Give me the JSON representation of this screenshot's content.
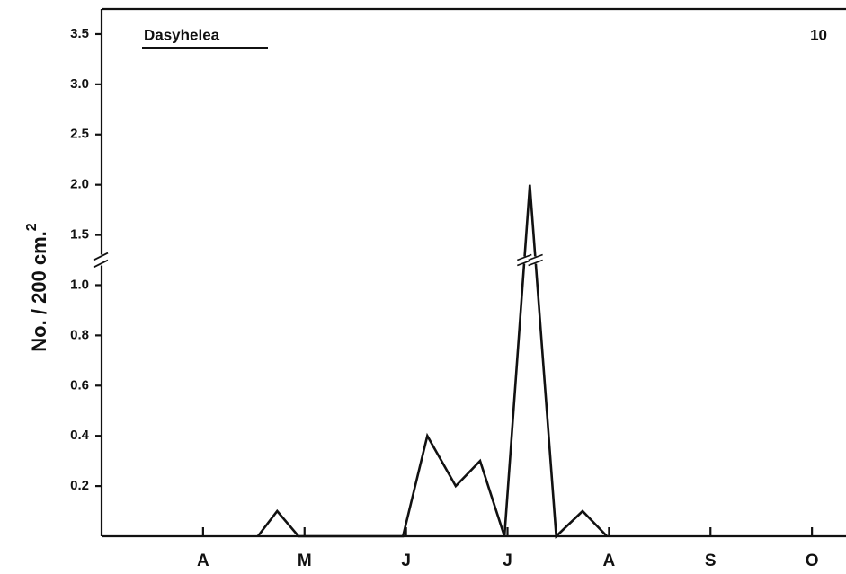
{
  "chart_data": {
    "type": "line",
    "title": "Dasyhelea",
    "annotation": "10",
    "ylabel": "No. / 200 cm.",
    "ylabel_superscript": "2",
    "x": [
      4.54,
      4.73,
      4.94,
      5.97,
      6.21,
      6.49,
      6.73,
      6.97,
      7.22,
      7.48,
      7.74,
      7.98
    ],
    "series": [
      {
        "color": "#111111",
        "values": [
          0,
          0.1,
          0,
          0,
          0.4,
          0.2,
          0.3,
          0,
          2.0,
          0,
          0.1,
          0
        ]
      }
    ],
    "xlim": [
      3,
      10.3
    ],
    "xticks": [
      {
        "value": 4,
        "label": "A"
      },
      {
        "value": 5,
        "label": "M"
      },
      {
        "value": 6,
        "label": "J"
      },
      {
        "value": 7,
        "label": "J"
      },
      {
        "value": 8,
        "label": "A"
      },
      {
        "value": 9,
        "label": "S"
      },
      {
        "value": 10,
        "label": "O"
      }
    ],
    "ylim": [
      0,
      3.75
    ],
    "ybreak": [
      1.1,
      1.25
    ],
    "yticks": [
      0.2,
      0.4,
      0.6,
      0.8,
      {
        "value": 1,
        "label": "1.0"
      },
      1.5,
      {
        "value": 2,
        "label": "2.0"
      },
      2.5,
      {
        "value": 3,
        "label": "3.0"
      },
      3.5
    ]
  }
}
